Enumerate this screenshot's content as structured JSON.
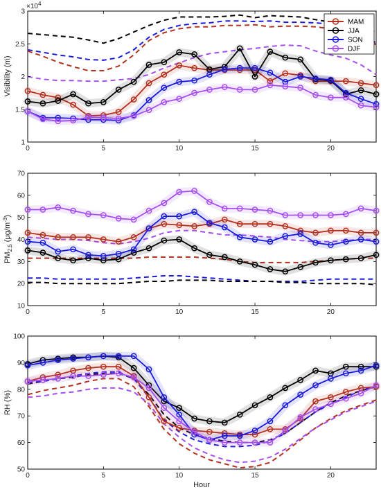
{
  "chart_data": [
    {
      "type": "line",
      "panel": "visibility",
      "ylabel": "Visibility (m)",
      "xlabel": "",
      "ylim": [
        10000,
        30000
      ],
      "xlim": [
        0,
        23
      ],
      "yticks": [
        10000,
        15000,
        20000,
        25000,
        30000
      ],
      "ytick_labels": [
        "1",
        "1.5",
        "2",
        "2.5",
        "3"
      ],
      "y_exponent": "×10",
      "y_exponent_power": "4",
      "xticks": [
        0,
        5,
        10,
        15,
        20
      ],
      "xtick_labels": [
        "0",
        "5",
        "10",
        "15",
        "20"
      ],
      "legend": {
        "position": "top-right",
        "entries": [
          "MAM",
          "JJA",
          "SON",
          "DJF"
        ]
      },
      "x": [
        0,
        1,
        2,
        3,
        4,
        5,
        6,
        7,
        8,
        9,
        10,
        11,
        12,
        13,
        14,
        15,
        16,
        17,
        18,
        19,
        20,
        21,
        22,
        23
      ],
      "series": [
        {
          "name": "MAM",
          "color": "#b5301f",
          "style": "solid-marker",
          "values": [
            17800,
            17200,
            16800,
            15700,
            14000,
            14100,
            14600,
            16500,
            19000,
            20300,
            21700,
            21300,
            21000,
            21000,
            21000,
            21000,
            19300,
            20500,
            20200,
            19300,
            19300,
            19300,
            19000,
            18700
          ]
        },
        {
          "name": "JJA",
          "color": "#000000",
          "style": "solid-marker",
          "values": [
            16200,
            15900,
            16300,
            17300,
            15900,
            16100,
            18000,
            19200,
            21800,
            22200,
            23700,
            23400,
            21100,
            21500,
            24300,
            20000,
            23800,
            22900,
            22600,
            19600,
            19400,
            17300,
            17900,
            17300
          ]
        },
        {
          "name": "SON",
          "color": "#1a1adb",
          "style": "solid-marker",
          "values": [
            14700,
            13700,
            13700,
            13600,
            13400,
            13400,
            13300,
            14100,
            16400,
            18300,
            19200,
            19400,
            20300,
            21100,
            21300,
            21300,
            20600,
            19200,
            20000,
            19700,
            19500,
            17500,
            16600,
            15800
          ]
        },
        {
          "name": "DJF",
          "color": "#a64ff0",
          "style": "solid-marker",
          "values": [
            14700,
            13500,
            13200,
            13300,
            13800,
            13700,
            13600,
            14000,
            14900,
            16100,
            16600,
            17500,
            18000,
            18400,
            18000,
            18000,
            18700,
            18500,
            18300,
            17200,
            16800,
            16800,
            15600,
            15300
          ]
        },
        {
          "name": "",
          "color": "#000000",
          "style": "dashed",
          "values": [
            26600,
            26400,
            26200,
            26000,
            25600,
            25100,
            25800,
            26800,
            27800,
            28600,
            29100,
            29100,
            29100,
            29200,
            29400,
            29000,
            29300,
            29200,
            29100,
            28700,
            28300,
            27900,
            27300,
            26800
          ]
        },
        {
          "name": "",
          "color": "#1a1adb",
          "style": "dashed",
          "values": [
            24100,
            23700,
            23300,
            23000,
            22600,
            22500,
            22900,
            24100,
            26000,
            27200,
            27800,
            28100,
            28200,
            28500,
            28500,
            28400,
            28500,
            28300,
            28300,
            28200,
            28000,
            27700,
            26800,
            25100
          ]
        },
        {
          "name": "",
          "color": "#b5301f",
          "style": "dashed",
          "values": [
            23900,
            23100,
            22200,
            21500,
            20900,
            20900,
            21600,
            23300,
            25500,
            26700,
            27300,
            27600,
            27600,
            27800,
            27800,
            27900,
            27600,
            27700,
            27700,
            27600,
            27300,
            27000,
            26000,
            24900
          ]
        },
        {
          "name": "",
          "color": "#a64ff0",
          "style": "dashed",
          "values": [
            20000,
            19600,
            19400,
            19400,
            19300,
            19300,
            19500,
            19700,
            20300,
            21300,
            22100,
            22900,
            23500,
            23800,
            24100,
            24300,
            24600,
            24800,
            24700,
            23900,
            23300,
            22800,
            21800,
            20300
          ]
        }
      ]
    },
    {
      "type": "line",
      "panel": "pm25",
      "ylabel_main": "PM",
      "ylabel_sub": "2.5",
      "ylabel_rest": " (μg/m",
      "ylabel_sup": "-3",
      "ylabel_close": ")",
      "xlabel": "",
      "ylim": [
        10,
        70
      ],
      "xlim": [
        0,
        23
      ],
      "yticks": [
        10,
        20,
        30,
        40,
        50,
        60,
        70
      ],
      "ytick_labels": [
        "10",
        "20",
        "30",
        "40",
        "50",
        "60",
        "70"
      ],
      "xticks": [
        0,
        5,
        10,
        15,
        20
      ],
      "xtick_labels": [
        "0",
        "5",
        "10",
        "15",
        "20"
      ],
      "x": [
        0,
        1,
        2,
        3,
        4,
        5,
        6,
        7,
        8,
        9,
        10,
        11,
        12,
        13,
        14,
        15,
        16,
        17,
        18,
        19,
        20,
        21,
        22,
        23
      ],
      "series": [
        {
          "name": "MAM",
          "color": "#b5301f",
          "style": "solid-marker",
          "values": [
            43,
            42,
            41,
            41,
            41,
            40,
            39,
            41,
            45,
            47,
            46.5,
            46,
            47,
            49,
            47,
            47,
            47,
            46,
            44,
            43,
            44,
            44,
            43,
            43
          ]
        },
        {
          "name": "JJA",
          "color": "#000000",
          "style": "solid-marker",
          "values": [
            35,
            34,
            31.5,
            30.5,
            31.5,
            30.5,
            31,
            34,
            36,
            39.5,
            40,
            36,
            33,
            32,
            30,
            28.5,
            26.5,
            25.5,
            27.5,
            29.5,
            30.5,
            31,
            31.5,
            33
          ]
        },
        {
          "name": "SON",
          "color": "#1a1adb",
          "style": "solid-marker",
          "values": [
            39,
            38.5,
            34.5,
            35.5,
            33,
            32.5,
            33.5,
            35.5,
            45,
            50.5,
            50.5,
            52.5,
            47.5,
            45.5,
            41,
            40,
            39,
            41.5,
            42.5,
            38.5,
            37.5,
            39,
            40,
            39
          ]
        },
        {
          "name": "DJF",
          "color": "#a64ff0",
          "style": "solid-marker",
          "values": [
            53.5,
            53.5,
            54.5,
            53,
            51.5,
            51,
            49.5,
            49,
            53,
            56.5,
            61.5,
            62,
            57,
            54,
            54,
            53.5,
            53,
            51,
            51,
            51,
            51,
            51.5,
            54,
            53
          ]
        },
        {
          "name": "",
          "color": "#a64ff0",
          "style": "dashed",
          "values": [
            41,
            40.5,
            40,
            40,
            39.5,
            38.5,
            38,
            39,
            40.5,
            43,
            44,
            44,
            43,
            42,
            42,
            41.5,
            41,
            40,
            39.5,
            39,
            39,
            39.5,
            40,
            40
          ]
        },
        {
          "name": "",
          "color": "#b5301f",
          "style": "dashed",
          "values": [
            31.5,
            31.5,
            31.5,
            31.5,
            31.5,
            31.5,
            31.5,
            31.5,
            32,
            32,
            32,
            32,
            31.5,
            31,
            30,
            29.5,
            29.5,
            29.5,
            29.5,
            30,
            30.5,
            31,
            31.5,
            31.5
          ]
        },
        {
          "name": "",
          "color": "#1a1adb",
          "style": "dashed",
          "values": [
            22.5,
            22.5,
            22,
            22,
            22,
            22,
            22,
            22.5,
            23,
            23.5,
            23.5,
            23,
            22.5,
            22,
            21.5,
            21,
            21,
            21,
            21,
            21.5,
            22,
            22,
            22,
            22
          ]
        },
        {
          "name": "",
          "color": "#000000",
          "style": "dashed",
          "values": [
            20.5,
            20.5,
            20,
            20,
            20,
            20,
            20,
            20.5,
            21,
            21,
            21.5,
            21.5,
            21.5,
            21,
            21,
            21,
            21,
            20.5,
            20.5,
            20,
            20,
            20,
            20,
            19.5
          ]
        }
      ]
    },
    {
      "type": "line",
      "panel": "rh",
      "ylabel": "RH (%)",
      "xlabel": "Hour",
      "ylim": [
        50,
        100
      ],
      "xlim": [
        0,
        23
      ],
      "yticks": [
        50,
        60,
        70,
        80,
        90,
        100
      ],
      "ytick_labels": [
        "50",
        "60",
        "70",
        "80",
        "90",
        "100"
      ],
      "xticks": [
        0,
        5,
        10,
        15,
        20
      ],
      "xtick_labels": [
        "0",
        "5",
        "10",
        "15",
        "20"
      ],
      "x": [
        0,
        1,
        2,
        3,
        4,
        5,
        6,
        7,
        8,
        9,
        10,
        11,
        12,
        13,
        14,
        15,
        16,
        17,
        18,
        19,
        20,
        21,
        22,
        23
      ],
      "series": [
        {
          "name": "MAM",
          "color": "#b5301f",
          "style": "solid-marker",
          "values": [
            83,
            84.5,
            85.5,
            87,
            88,
            88.5,
            88.5,
            85,
            77,
            68,
            65.5,
            64.5,
            64,
            63.5,
            63,
            63,
            65,
            65,
            69,
            75.5,
            77,
            79,
            80.5,
            81
          ]
        },
        {
          "name": "JJA",
          "color": "#000000",
          "style": "solid-marker",
          "values": [
            89.5,
            91,
            91.5,
            92,
            92,
            92.5,
            92,
            88,
            81.5,
            75.5,
            73,
            69,
            68,
            67.5,
            70.5,
            74,
            77,
            80.5,
            83.5,
            87,
            86,
            88.5,
            88.5,
            88.5
          ]
        },
        {
          "name": "SON",
          "color": "#1a1adb",
          "style": "solid-marker",
          "values": [
            89,
            90,
            91,
            91.5,
            92,
            92.5,
            92.5,
            92.5,
            87.5,
            77,
            70.5,
            63,
            61,
            62.5,
            62.5,
            64.5,
            68,
            74,
            78,
            81.5,
            84,
            86,
            87,
            89
          ]
        },
        {
          "name": "DJF",
          "color": "#a64ff0",
          "style": "solid-marker",
          "values": [
            83,
            83.5,
            84,
            85,
            85,
            85.5,
            86,
            84.5,
            80.5,
            73,
            68,
            64,
            61,
            60,
            60,
            60,
            60,
            64.5,
            69.5,
            72.5,
            74.5,
            76.5,
            78.5,
            81.5
          ]
        },
        {
          "name": "",
          "color": "#000000",
          "style": "dashed",
          "values": [
            82,
            83,
            84,
            84.5,
            85.5,
            86,
            86,
            84,
            78,
            70.5,
            65.5,
            63,
            61.5,
            60.5,
            60,
            60,
            61,
            63.5,
            67.5,
            71.5,
            75,
            77.5,
            79.5,
            81
          ]
        },
        {
          "name": "",
          "color": "#1a1adb",
          "style": "dashed",
          "values": [
            82.5,
            83,
            84,
            85,
            86,
            86.5,
            86.5,
            84,
            77,
            68.5,
            64,
            61,
            59.5,
            58.5,
            58.5,
            59,
            60.5,
            63.5,
            67.5,
            71.5,
            74.5,
            77,
            79.5,
            81.5
          ]
        },
        {
          "name": "",
          "color": "#b5301f",
          "style": "dashed",
          "values": [
            78,
            79.5,
            80.5,
            81.5,
            83,
            84,
            84,
            81,
            73.5,
            65,
            59.5,
            56,
            53.5,
            52,
            50.5,
            51,
            52.5,
            56.5,
            61,
            65.5,
            69,
            72,
            74,
            76
          ]
        },
        {
          "name": "",
          "color": "#a64ff0",
          "style": "dashed",
          "values": [
            77,
            77.5,
            78.5,
            79,
            80,
            80.5,
            80.5,
            79,
            74.5,
            67,
            62,
            58,
            55.5,
            53.5,
            52.5,
            53,
            54.5,
            57.5,
            61.5,
            65.5,
            68.5,
            71.5,
            73.5,
            75.5
          ]
        }
      ]
    }
  ]
}
